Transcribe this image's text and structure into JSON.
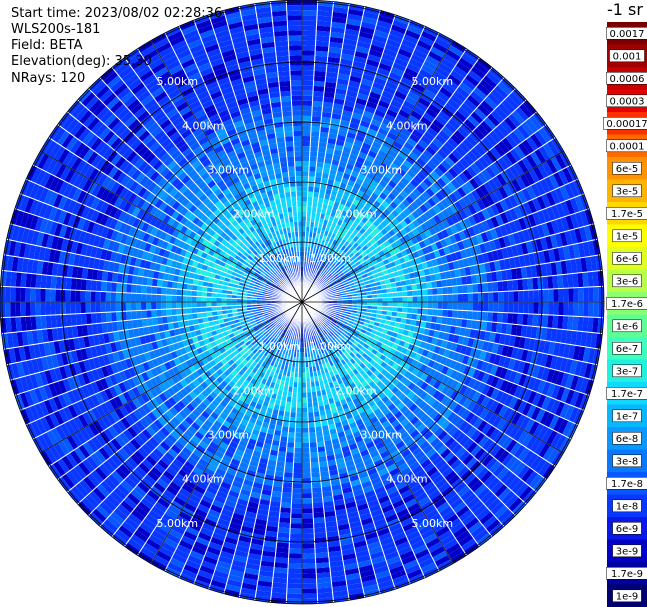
{
  "header": {
    "start_time": "Start time: 2023/08/02 02:28:36",
    "site": "WLS200s-181",
    "field": "Field: BETA",
    "elevation": "Elevation(deg): 35.30",
    "nrays": "NRays: 120"
  },
  "colorbar": {
    "unit_label": "-1 sr",
    "labels": [
      "0.0017",
      "0.001",
      "0.0006",
      "0.0003",
      "0.00017",
      "0.0001",
      "6e-5",
      "3e-5",
      "1.7e-5",
      "1e-5",
      "6e-6",
      "3e-6",
      "1.7e-6",
      "1e-6",
      "6e-7",
      "3e-7",
      "1.7e-7",
      "1e-7",
      "6e-8",
      "3e-8",
      "1.7e-8",
      "1e-8",
      "6e-9",
      "3e-9",
      "1.7e-9",
      "1e-9"
    ],
    "colors": [
      "#7a0000",
      "#a00000",
      "#c80000",
      "#e60000",
      "#ff3000",
      "#ff6a00",
      "#ff9200",
      "#ffb300",
      "#ffd700",
      "#ffff00",
      "#e0ff20",
      "#b8ff48",
      "#8cff6e",
      "#60ff96",
      "#3cffc0",
      "#20f0e0",
      "#10d8ff",
      "#08b8ff",
      "#0898ff",
      "#0878ff",
      "#0858ff",
      "#0838ff",
      "#0818e8",
      "#0000c8",
      "#00009c",
      "#000070"
    ]
  },
  "ring_labels": [
    "1.00km",
    "2.00km",
    "3.00km",
    "4.00km",
    "5.00km"
  ],
  "chart_data": {
    "type": "heatmap",
    "title": "Start time: 2023/08/02 02:28:36",
    "projection": "polar-ppi",
    "field": "BETA",
    "site": "WLS200s-181",
    "elevation_deg": 35.3,
    "n_rays": 120,
    "unit": "-1 sr",
    "range_rings_km": [
      1,
      2,
      3,
      4,
      5
    ],
    "value_range": [
      1e-09,
      0.0017
    ],
    "radial_profile": {
      "range_km": [
        0,
        0.5,
        1.0,
        1.5,
        2.0,
        2.5,
        3.0,
        3.5,
        4.0,
        4.5,
        5.0
      ],
      "dominant_value": [
        1e-08,
        1e-08,
        1e-07,
        1.7e-07,
        1e-07,
        3e-08,
        3e-08,
        1e-08,
        1e-08,
        1e-08,
        1e-08
      ]
    }
  }
}
